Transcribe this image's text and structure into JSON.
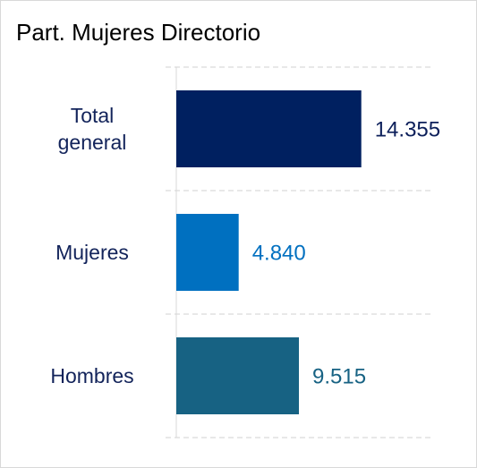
{
  "chart_data": {
    "type": "bar",
    "orientation": "horizontal",
    "title": "Part. Mujeres Directorio",
    "categories": [
      "Total general",
      "Mujeres",
      "Hombres"
    ],
    "values": [
      14355,
      4840,
      9515
    ],
    "value_labels": [
      "14.355",
      "4.840",
      "9.515"
    ],
    "colors": [
      "#002060",
      "#0070c0",
      "#176283"
    ],
    "label_colors": [
      "#0c1f5a",
      "#0070c0",
      "#176283"
    ],
    "xlim": [
      0,
      20000
    ],
    "grid": true
  }
}
